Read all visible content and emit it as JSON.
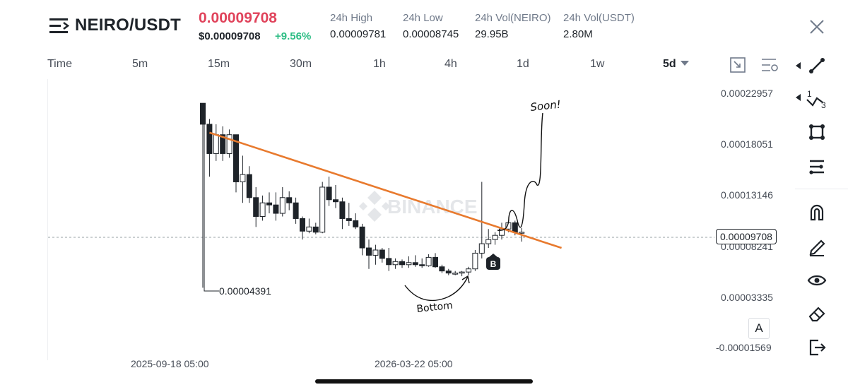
{
  "header": {
    "pair": "NEIRO/USDT",
    "price": "0.00009708",
    "usd_price": "$0.00009708",
    "change": "+9.56%",
    "stats": [
      {
        "label": "24h High",
        "value": "0.00009781"
      },
      {
        "label": "24h Low",
        "value": "0.00008745"
      },
      {
        "label": "24h Vol(NEIRO)",
        "value": "29.95B"
      },
      {
        "label": "24h Vol(USDT)",
        "value": "2.80M"
      }
    ]
  },
  "timeframes": {
    "time_label": "Time",
    "options": [
      "5m",
      "15m",
      "30m",
      "1h",
      "4h",
      "1d",
      "1w"
    ],
    "selected": "5d"
  },
  "chart": {
    "watermark": "BINANCE",
    "y_axis": [
      "0.00022957",
      "0.00018051",
      "0.00013146",
      "0.00008241",
      "0.00003335",
      "-0.00001569"
    ],
    "x_axis": [
      "2025-09-18 05:00",
      "2026-03-22 05:00"
    ],
    "current_price": "0.00009708",
    "low_marker": "0.00004391",
    "annotations": {
      "soon": "Soon!",
      "bottom": "Bottom"
    },
    "buy_marker": "B",
    "auto_label": "A"
  },
  "colors": {
    "up": "#2ebd85",
    "down": "#e0435b",
    "trendline": "#e87a2e"
  },
  "chart_data": {
    "type": "candlestick",
    "title": "NEIRO/USDT",
    "interval": "5d",
    "y_range": [
      -1.569e-05,
      0.00022957
    ],
    "y_ticks": [
      0.00022957,
      0.00018051,
      0.00013146,
      8.241e-05,
      3.335e-05,
      -1.569e-05
    ],
    "current_price": 9.708e-05,
    "period_low": 4.391e-05,
    "candles": [
      {
        "o": 0.00022,
        "h": 0.00022,
        "l": 4.4e-05,
        "c": 0.0002
      },
      {
        "o": 0.0002,
        "h": 0.000205,
        "l": 0.00015,
        "c": 0.000172
      },
      {
        "o": 0.000172,
        "h": 0.0002,
        "l": 0.000165,
        "c": 0.00019
      },
      {
        "o": 0.00019,
        "h": 0.000198,
        "l": 0.000165,
        "c": 0.000172
      },
      {
        "o": 0.000172,
        "h": 0.000195,
        "l": 0.000168,
        "c": 0.00019
      },
      {
        "o": 0.00019,
        "h": 0.00019,
        "l": 0.000135,
        "c": 0.000145
      },
      {
        "o": 0.000145,
        "h": 0.00017,
        "l": 0.000125,
        "c": 0.000152
      },
      {
        "o": 0.000152,
        "h": 0.00016,
        "l": 0.000125,
        "c": 0.00013
      },
      {
        "o": 0.00013,
        "h": 0.00014,
        "l": 0.000102,
        "c": 0.000112
      },
      {
        "o": 0.000112,
        "h": 0.000132,
        "l": 0.000108,
        "c": 0.000125
      },
      {
        "o": 0.000125,
        "h": 0.000135,
        "l": 0.000115,
        "c": 0.000123
      },
      {
        "o": 0.000123,
        "h": 0.000135,
        "l": 0.000108,
        "c": 0.000115
      },
      {
        "o": 0.000115,
        "h": 0.00014,
        "l": 0.000112,
        "c": 0.00013
      },
      {
        "o": 0.00013,
        "h": 0.000136,
        "l": 0.000118,
        "c": 0.000125
      },
      {
        "o": 0.000125,
        "h": 0.00013,
        "l": 0.000105,
        "c": 0.00011
      },
      {
        "o": 0.00011,
        "h": 0.000112,
        "l": 9e-05,
        "c": 9.8e-05
      },
      {
        "o": 9.8e-05,
        "h": 0.00011,
        "l": 9.6e-05,
        "c": 0.000102
      },
      {
        "o": 0.000102,
        "h": 0.000106,
        "l": 9.5e-05,
        "c": 9.7e-05
      },
      {
        "o": 9.7e-05,
        "h": 0.000145,
        "l": 9.6e-05,
        "c": 0.00014
      },
      {
        "o": 0.00014,
        "h": 0.00015,
        "l": 0.000122,
        "c": 0.000128
      },
      {
        "o": 0.000128,
        "h": 0.000142,
        "l": 0.00012,
        "c": 0.000126
      },
      {
        "o": 0.000126,
        "h": 0.00013,
        "l": 0.0001,
        "c": 0.00011
      },
      {
        "o": 0.00011,
        "h": 0.000125,
        "l": 0.000103,
        "c": 0.000108
      },
      {
        "o": 0.000108,
        "h": 0.000115,
        "l": 0.0001,
        "c": 0.000102
      },
      {
        "o": 0.000102,
        "h": 0.000105,
        "l": 7.5e-05,
        "c": 8.2e-05
      },
      {
        "o": 8.2e-05,
        "h": 9e-05,
        "l": 6.2e-05,
        "c": 7.5e-05
      },
      {
        "o": 7.5e-05,
        "h": 8.5e-05,
        "l": 6.6e-05,
        "c": 8e-05
      },
      {
        "o": 8e-05,
        "h": 8.2e-05,
        "l": 6.8e-05,
        "c": 7.2e-05
      },
      {
        "o": 7.2e-05,
        "h": 8.2e-05,
        "l": 6e-05,
        "c": 6.6e-05
      },
      {
        "o": 6.6e-05,
        "h": 7.2e-05,
        "l": 6.2e-05,
        "c": 6.9e-05
      },
      {
        "o": 6.9e-05,
        "h": 7.1e-05,
        "l": 6.3e-05,
        "c": 6.6e-05
      },
      {
        "o": 6.6e-05,
        "h": 7.4e-05,
        "l": 6.3e-05,
        "c": 6.8e-05
      },
      {
        "o": 6.8e-05,
        "h": 7.5e-05,
        "l": 6.4e-05,
        "c": 6.6e-05
      },
      {
        "o": 6.6e-05,
        "h": 7.2e-05,
        "l": 6.3e-05,
        "c": 6.5e-05
      },
      {
        "o": 6.5e-05,
        "h": 7.6e-05,
        "l": 6.4e-05,
        "c": 7.3e-05
      },
      {
        "o": 7.3e-05,
        "h": 7.7e-05,
        "l": 6.3e-05,
        "c": 6.4e-05
      },
      {
        "o": 6.4e-05,
        "h": 6.6e-05,
        "l": 5.8e-05,
        "c": 6e-05
      },
      {
        "o": 6e-05,
        "h": 6.2e-05,
        "l": 5.6e-05,
        "c": 5.8e-05
      },
      {
        "o": 5.8e-05,
        "h": 6e-05,
        "l": 5.6e-05,
        "c": 5.8e-05
      },
      {
        "o": 5.8e-05,
        "h": 6e-05,
        "l": 5.5e-05,
        "c": 5.9e-05
      },
      {
        "o": 5.9e-05,
        "h": 6.4e-05,
        "l": 5.6e-05,
        "c": 6.2e-05
      },
      {
        "o": 6.2e-05,
        "h": 8e-05,
        "l": 6e-05,
        "c": 7.7e-05
      },
      {
        "o": 7.7e-05,
        "h": 0.000145,
        "l": 7.2e-05,
        "c": 8.6e-05
      },
      {
        "o": 8.6e-05,
        "h": 0.0001,
        "l": 8.2e-05,
        "c": 9e-05
      },
      {
        "o": 9e-05,
        "h": 9.7e-05,
        "l": 8.5e-05,
        "c": 9.4e-05
      },
      {
        "o": 9.4e-05,
        "h": 0.000106,
        "l": 9e-05,
        "c": 0.0001
      },
      {
        "o": 0.0001,
        "h": 0.000108,
        "l": 9.7e-05,
        "c": 0.000106
      },
      {
        "o": 0.000106,
        "h": 0.000108,
        "l": 9.4e-05,
        "c": 9.7e-05
      },
      {
        "o": 9.7e-05,
        "h": 0.000101,
        "l": 8.8e-05,
        "c": 9.7e-05
      }
    ],
    "trendline": [
      {
        "index": 1,
        "price": 0.000192
      },
      {
        "index": 54,
        "price": 8.2e-05
      }
    ]
  }
}
